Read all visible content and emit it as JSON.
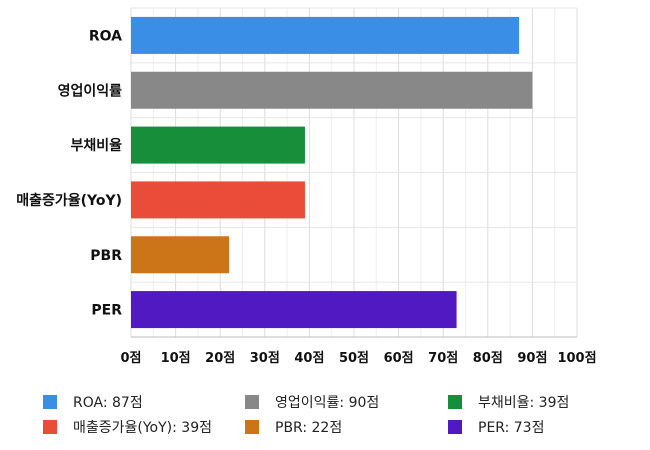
{
  "chart_data": {
    "type": "bar",
    "orientation": "horizontal",
    "categories": [
      "ROA",
      "영업이익률",
      "부채비율",
      "매출증가율(YoY)",
      "PBR",
      "PER"
    ],
    "values": [
      87,
      90,
      39,
      39,
      22,
      73
    ],
    "colors": [
      "#3a8ee6",
      "#888888",
      "#178e3a",
      "#ea4c3a",
      "#cc7518",
      "#5019c1"
    ],
    "xlim": [
      0,
      100
    ],
    "xticks": [
      0,
      10,
      20,
      30,
      40,
      50,
      60,
      70,
      80,
      90,
      100
    ],
    "xtick_labels": [
      "0점",
      "10점",
      "20점",
      "30점",
      "40점",
      "50점",
      "60점",
      "70점",
      "80점",
      "90점",
      "100점"
    ],
    "grid": true,
    "legend_position": "bottom",
    "legend": [
      "ROA: 87점",
      "영업이익률: 90점",
      "부채비율: 39점",
      "매출증가율(YoY): 39점",
      "PBR: 22점",
      "PER: 73점"
    ],
    "title": "",
    "xlabel": "",
    "ylabel": ""
  }
}
